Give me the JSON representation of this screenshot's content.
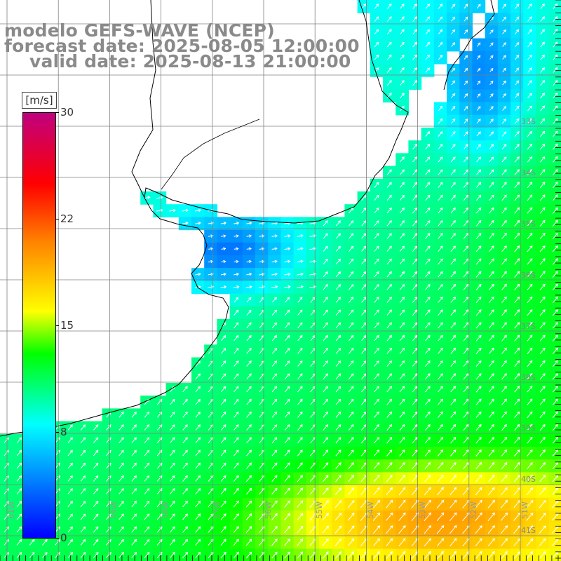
{
  "title": {
    "line1": "modelo GEFS-WAVE (NCEP)",
    "line2": "forecast date: 2025-08-05 12:00:00",
    "line3": "valid date: 2025-08-13 21:00:00"
  },
  "legend": {
    "unit": "[m/s]",
    "ticks": [
      "30",
      "22",
      "15",
      "8",
      "0"
    ],
    "colormap": [
      "#0000ff",
      "#00ffff",
      "#00ff00",
      "#ffff00",
      "#ff8000",
      "#ff0000",
      "#c00080"
    ]
  },
  "axes": {
    "lon_labels": [
      "61W",
      "59W",
      "58W",
      "57W",
      "56W",
      "55W",
      "54W",
      "53W",
      "52W",
      "51W"
    ],
    "lat_labels": [
      "33S",
      "34S",
      "35S",
      "36S",
      "37S",
      "38S",
      "39S",
      "40S",
      "41S"
    ]
  }
}
